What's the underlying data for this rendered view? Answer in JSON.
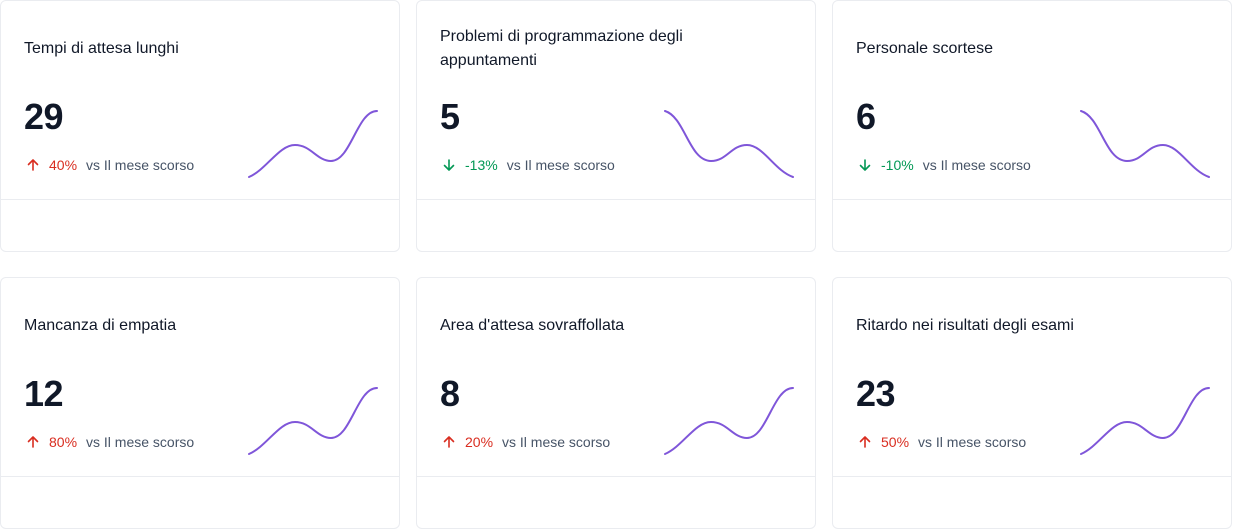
{
  "colors": {
    "up": "#d92d20",
    "down": "#039855",
    "sparkline": "#7f56d9",
    "border": "#eaecf0"
  },
  "cards": [
    {
      "title": "Tempi di attesa lunghi",
      "value": "29",
      "change": "40%",
      "direction": "up",
      "trend_label": "vs Il mese scorso",
      "sparkline_shape": "rising"
    },
    {
      "title": "Problemi di programmazione degli appuntamenti",
      "value": "5",
      "change": "-13%",
      "direction": "down",
      "trend_label": "vs Il mese scorso",
      "sparkline_shape": "falling"
    },
    {
      "title": "Personale scortese",
      "value": "6",
      "change": "-10%",
      "direction": "down",
      "trend_label": "vs Il mese scorso",
      "sparkline_shape": "falling"
    },
    {
      "title": "Mancanza di empatia",
      "value": "12",
      "change": "80%",
      "direction": "up",
      "trend_label": "vs Il mese scorso",
      "sparkline_shape": "rising"
    },
    {
      "title": "Area d'attesa sovraffollata",
      "value": "8",
      "change": "20%",
      "direction": "up",
      "trend_label": "vs Il mese scorso",
      "sparkline_shape": "rising"
    },
    {
      "title": "Ritardo nei risultati degli esami",
      "value": "23",
      "change": "50%",
      "direction": "up",
      "trend_label": "vs Il mese scorso",
      "sparkline_shape": "rising"
    }
  ]
}
